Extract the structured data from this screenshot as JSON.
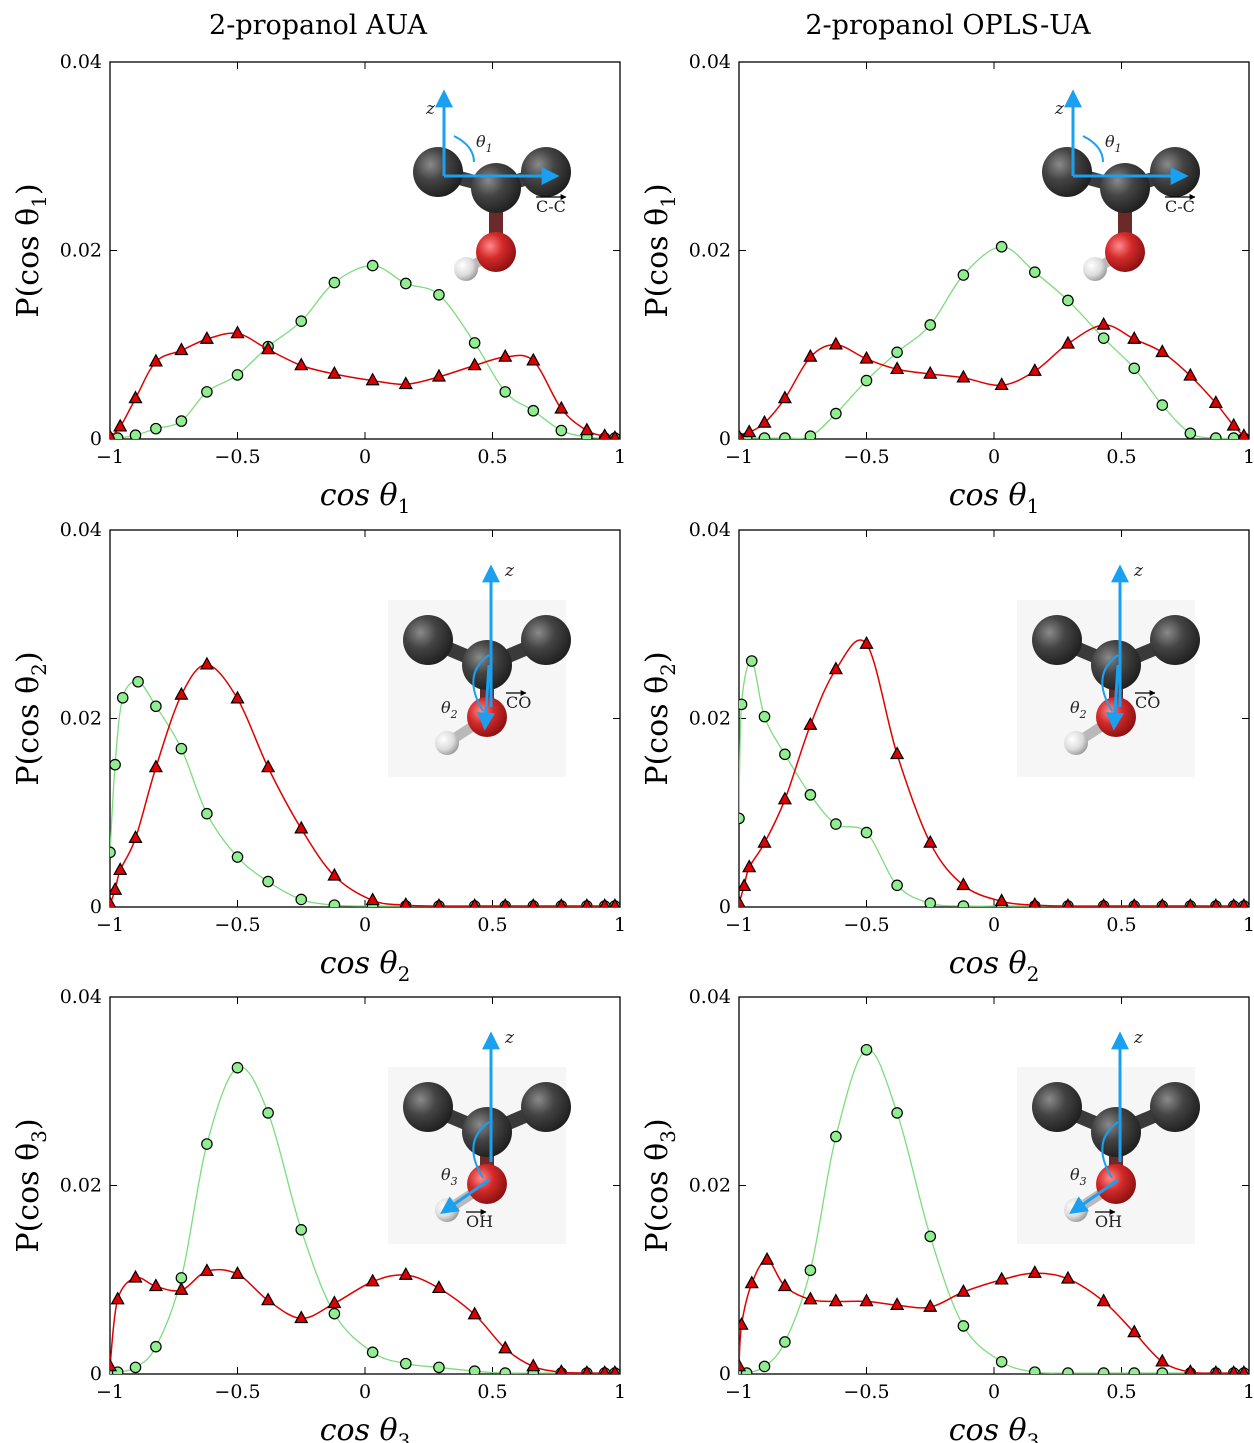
{
  "figure": {
    "columns": [
      {
        "title": "2-propanol AUA"
      },
      {
        "title": "2-propanol OPLS-UA"
      }
    ],
    "rows": [
      {
        "xlabel": "cos θ",
        "xlabel_sub": "1",
        "ylabel": "P(cos θ",
        "ylabel_sub": "1",
        "ylabel_close": ")",
        "inset": {
          "axis_label": "z",
          "angle_label": "θ",
          "angle_sub": "1",
          "vector_label": "C-C",
          "target": "cc"
        }
      },
      {
        "xlabel": "cos θ",
        "xlabel_sub": "2",
        "ylabel": "P(cos θ",
        "ylabel_sub": "2",
        "ylabel_close": ")",
        "inset": {
          "axis_label": "z",
          "angle_label": "θ",
          "angle_sub": "2",
          "vector_label": "CO",
          "target": "co"
        }
      },
      {
        "xlabel": "cos θ",
        "xlabel_sub": "3",
        "ylabel": "P(cos θ",
        "ylabel_sub": "3",
        "ylabel_close": ")",
        "inset": {
          "axis_label": "z",
          "angle_label": "θ",
          "angle_sub": "3",
          "vector_label": "OH",
          "target": "oh"
        }
      }
    ],
    "x_ticks": [
      "−1",
      "−0.5",
      "0",
      "0.5",
      "1"
    ],
    "y_ticks": [
      "0",
      "0.02",
      "0.04"
    ],
    "colors": {
      "green_series": "#90EE90",
      "green_line": "#7ddc7d",
      "red_series": "#dd0000",
      "red_line": "#e00000",
      "molecule_carbon": "#3c3c3c",
      "molecule_oxygen": "#d42a2a",
      "molecule_hydrogen": "#e6e6e6",
      "arrow": "#1aa0f0"
    }
  },
  "chart_data": [
    {
      "type": "line",
      "panel": "AUA cosθ1",
      "xlim": [
        -1,
        1
      ],
      "ylim": [
        0,
        0.04
      ],
      "grid": false,
      "x_tick_values": [
        -1,
        -0.5,
        0,
        0.5,
        1
      ],
      "y_tick_values": [
        0,
        0.02,
        0.04
      ],
      "series": [
        {
          "marker": "circle",
          "color": "green",
          "x": [
            -1,
            -0.97,
            -0.9,
            -0.82,
            -0.72,
            -0.62,
            -0.5,
            -0.38,
            -0.25,
            -0.12,
            0.03,
            0.16,
            0.29,
            0.43,
            0.55,
            0.66,
            0.77,
            0.87,
            0.94,
            0.98
          ],
          "y": [
            0.0001,
            0.0001,
            0.0004,
            0.0011,
            0.0019,
            0.005,
            0.0068,
            0.0098,
            0.0125,
            0.0166,
            0.0184,
            0.0165,
            0.0153,
            0.0102,
            0.005,
            0.003,
            0.0009,
            0.0002,
            0.0001,
            0.0001
          ]
        },
        {
          "marker": "triangle",
          "color": "red",
          "x": [
            -1,
            -0.96,
            -0.9,
            -0.82,
            -0.72,
            -0.62,
            -0.5,
            -0.38,
            -0.25,
            -0.12,
            0.03,
            0.16,
            0.29,
            0.43,
            0.55,
            0.66,
            0.77,
            0.87,
            0.94,
            0.98
          ],
          "y": [
            0.0002,
            0.0013,
            0.0043,
            0.0082,
            0.0094,
            0.0106,
            0.0112,
            0.0095,
            0.0078,
            0.0069,
            0.0062,
            0.0058,
            0.0066,
            0.0078,
            0.0087,
            0.0083,
            0.0032,
            0.0009,
            0.0003,
            0.0001
          ]
        }
      ]
    },
    {
      "type": "line",
      "panel": "OPLS-UA cosθ1",
      "xlim": [
        -1,
        1
      ],
      "ylim": [
        0,
        0.04
      ],
      "grid": false,
      "x_tick_values": [
        -1,
        -0.5,
        0,
        0.5,
        1
      ],
      "y_tick_values": [
        0,
        0.02,
        0.04
      ],
      "series": [
        {
          "marker": "circle",
          "color": "green",
          "x": [
            -1,
            -0.97,
            -0.9,
            -0.82,
            -0.72,
            -0.62,
            -0.5,
            -0.38,
            -0.25,
            -0.12,
            0.03,
            0.16,
            0.29,
            0.43,
            0.55,
            0.66,
            0.77,
            0.87,
            0.94,
            0.98
          ],
          "y": [
            0.0001,
            0.0001,
            0.0001,
            0.0001,
            0.0003,
            0.0027,
            0.0062,
            0.0092,
            0.0121,
            0.0174,
            0.0204,
            0.0177,
            0.0147,
            0.0107,
            0.0075,
            0.0036,
            0.0006,
            0.0001,
            0.0001,
            0.0001
          ]
        },
        {
          "marker": "triangle",
          "color": "red",
          "x": [
            -1,
            -0.96,
            -0.9,
            -0.82,
            -0.72,
            -0.62,
            -0.5,
            -0.38,
            -0.25,
            -0.12,
            0.03,
            0.16,
            0.29,
            0.43,
            0.55,
            0.66,
            0.77,
            0.87,
            0.94,
            0.98
          ],
          "y": [
            0.0002,
            0.0007,
            0.0017,
            0.0043,
            0.0087,
            0.01,
            0.0085,
            0.0074,
            0.0069,
            0.0065,
            0.0057,
            0.0072,
            0.0101,
            0.0121,
            0.0106,
            0.0092,
            0.0067,
            0.0038,
            0.0014,
            0.0003
          ]
        }
      ]
    },
    {
      "type": "line",
      "panel": "AUA cosθ2",
      "xlim": [
        -1,
        1
      ],
      "ylim": [
        0,
        0.04
      ],
      "grid": false,
      "x_tick_values": [
        -1,
        -0.5,
        0,
        0.5,
        1
      ],
      "y_tick_values": [
        0,
        0.02,
        0.04
      ],
      "series": [
        {
          "marker": "circle",
          "color": "green",
          "x": [
            -1,
            -0.98,
            -0.95,
            -0.89,
            -0.82,
            -0.72,
            -0.62,
            -0.5,
            -0.38,
            -0.25,
            -0.12,
            0.03,
            0.16,
            0.29,
            0.43,
            0.55,
            0.66,
            0.77,
            0.87,
            0.94,
            0.98
          ],
          "y": [
            0.0058,
            0.0151,
            0.0222,
            0.0239,
            0.0213,
            0.0168,
            0.0099,
            0.0053,
            0.0027,
            0.0008,
            0.0002,
            0.0001,
            0.0001,
            0.0001,
            0.0001,
            0.0001,
            0.0001,
            0.0001,
            0.0001,
            0.0001,
            0.0001
          ]
        },
        {
          "marker": "triangle",
          "color": "red",
          "x": [
            -1,
            -0.98,
            -0.96,
            -0.9,
            -0.82,
            -0.72,
            -0.62,
            -0.5,
            -0.38,
            -0.25,
            -0.12,
            0.03,
            0.16,
            0.29,
            0.43,
            0.55,
            0.66,
            0.77,
            0.87,
            0.94,
            0.98
          ],
          "y": [
            0.0003,
            0.0018,
            0.0039,
            0.0073,
            0.0148,
            0.0225,
            0.0257,
            0.0221,
            0.0148,
            0.0083,
            0.0033,
            0.0007,
            0.0002,
            0.0001,
            0.0001,
            0.0001,
            0.0001,
            0.0001,
            0.0001,
            0.0001,
            0.0001
          ]
        }
      ]
    },
    {
      "type": "line",
      "panel": "OPLS-UA cosθ2",
      "xlim": [
        -1,
        1
      ],
      "ylim": [
        0,
        0.04
      ],
      "grid": false,
      "x_tick_values": [
        -1,
        -0.5,
        0,
        0.5,
        1
      ],
      "y_tick_values": [
        0,
        0.02,
        0.04
      ],
      "series": [
        {
          "marker": "circle",
          "color": "green",
          "x": [
            -1,
            -0.99,
            -0.95,
            -0.9,
            -0.82,
            -0.72,
            -0.62,
            -0.5,
            -0.38,
            -0.25,
            -0.12,
            0.03,
            0.16,
            0.29,
            0.43,
            0.55,
            0.66,
            0.77,
            0.87,
            0.94,
            0.98
          ],
          "y": [
            0.0094,
            0.0215,
            0.0261,
            0.0202,
            0.0162,
            0.0119,
            0.0088,
            0.0079,
            0.0023,
            0.0004,
            0.0001,
            0.0001,
            0.0001,
            0.0001,
            0.0001,
            0.0001,
            0.0001,
            0.0001,
            0.0001,
            0.0001,
            0.0001
          ]
        },
        {
          "marker": "triangle",
          "color": "red",
          "x": [
            -1,
            -0.98,
            -0.96,
            -0.9,
            -0.82,
            -0.72,
            -0.62,
            -0.5,
            -0.38,
            -0.25,
            -0.12,
            0.03,
            0.16,
            0.29,
            0.43,
            0.55,
            0.66,
            0.77,
            0.87,
            0.94,
            0.98
          ],
          "y": [
            0.0004,
            0.0022,
            0.0042,
            0.0068,
            0.0114,
            0.0193,
            0.0252,
            0.0279,
            0.0162,
            0.0068,
            0.0023,
            0.0006,
            0.0002,
            0.0001,
            0.0001,
            0.0001,
            0.0001,
            0.0001,
            0.0001,
            0.0001,
            0.0001
          ]
        }
      ]
    },
    {
      "type": "line",
      "panel": "AUA cosθ3",
      "xlim": [
        -1,
        1
      ],
      "ylim": [
        0,
        0.04
      ],
      "grid": false,
      "x_tick_values": [
        -1,
        -0.5,
        0,
        0.5,
        1
      ],
      "y_tick_values": [
        0,
        0.02,
        0.04
      ],
      "series": [
        {
          "marker": "circle",
          "color": "green",
          "x": [
            -1,
            -0.97,
            -0.9,
            -0.82,
            -0.72,
            -0.62,
            -0.5,
            -0.38,
            -0.25,
            -0.12,
            0.03,
            0.16,
            0.29,
            0.43,
            0.55,
            0.66,
            0.77,
            0.87,
            0.94,
            0.98
          ],
          "y": [
            0.0001,
            0.0002,
            0.0007,
            0.0029,
            0.0102,
            0.0244,
            0.0325,
            0.0277,
            0.0153,
            0.0064,
            0.0023,
            0.0011,
            0.0007,
            0.0003,
            0.0001,
            0.0001,
            0.0001,
            0.0001,
            0.0001,
            0.0001
          ]
        },
        {
          "marker": "triangle",
          "color": "red",
          "x": [
            -1,
            -0.97,
            -0.9,
            -0.82,
            -0.72,
            -0.62,
            -0.5,
            -0.38,
            -0.25,
            -0.12,
            0.03,
            0.16,
            0.29,
            0.43,
            0.55,
            0.66,
            0.77,
            0.87,
            0.94,
            0.98
          ],
          "y": [
            0.0008,
            0.0079,
            0.0102,
            0.0093,
            0.0089,
            0.0109,
            0.0106,
            0.0078,
            0.0059,
            0.0075,
            0.0098,
            0.0105,
            0.0091,
            0.0063,
            0.0027,
            0.0008,
            0.0002,
            0.0001,
            0.0001,
            0.0001
          ]
        }
      ]
    },
    {
      "type": "line",
      "panel": "OPLS-UA cosθ3",
      "xlim": [
        -1,
        1
      ],
      "ylim": [
        0,
        0.04
      ],
      "grid": false,
      "x_tick_values": [
        -1,
        -0.5,
        0,
        0.5,
        1
      ],
      "y_tick_values": [
        0,
        0.02,
        0.04
      ],
      "series": [
        {
          "marker": "circle",
          "color": "green",
          "x": [
            -1,
            -0.97,
            -0.9,
            -0.82,
            -0.72,
            -0.62,
            -0.5,
            -0.38,
            -0.25,
            -0.12,
            0.03,
            0.16,
            0.29,
            0.43,
            0.55,
            0.66,
            0.77,
            0.87,
            0.94,
            0.98
          ],
          "y": [
            0.0001,
            0.0001,
            0.0008,
            0.0034,
            0.011,
            0.0252,
            0.0344,
            0.0277,
            0.0146,
            0.0051,
            0.0013,
            0.0002,
            0.0001,
            0.0001,
            0.0001,
            0.0001,
            0.0001,
            0.0001,
            0.0001,
            0.0001
          ]
        },
        {
          "marker": "triangle",
          "color": "red",
          "x": [
            -1,
            -0.99,
            -0.95,
            -0.89,
            -0.82,
            -0.72,
            -0.62,
            -0.5,
            -0.38,
            -0.25,
            -0.12,
            0.03,
            0.16,
            0.29,
            0.43,
            0.55,
            0.66,
            0.77,
            0.87,
            0.94,
            0.98
          ],
          "y": [
            0.0008,
            0.0052,
            0.0096,
            0.0121,
            0.0093,
            0.0079,
            0.0077,
            0.0077,
            0.0073,
            0.0071,
            0.0087,
            0.01,
            0.0107,
            0.0101,
            0.0077,
            0.0044,
            0.0013,
            0.0002,
            0.0001,
            0.0001,
            0.0001
          ]
        }
      ]
    }
  ]
}
